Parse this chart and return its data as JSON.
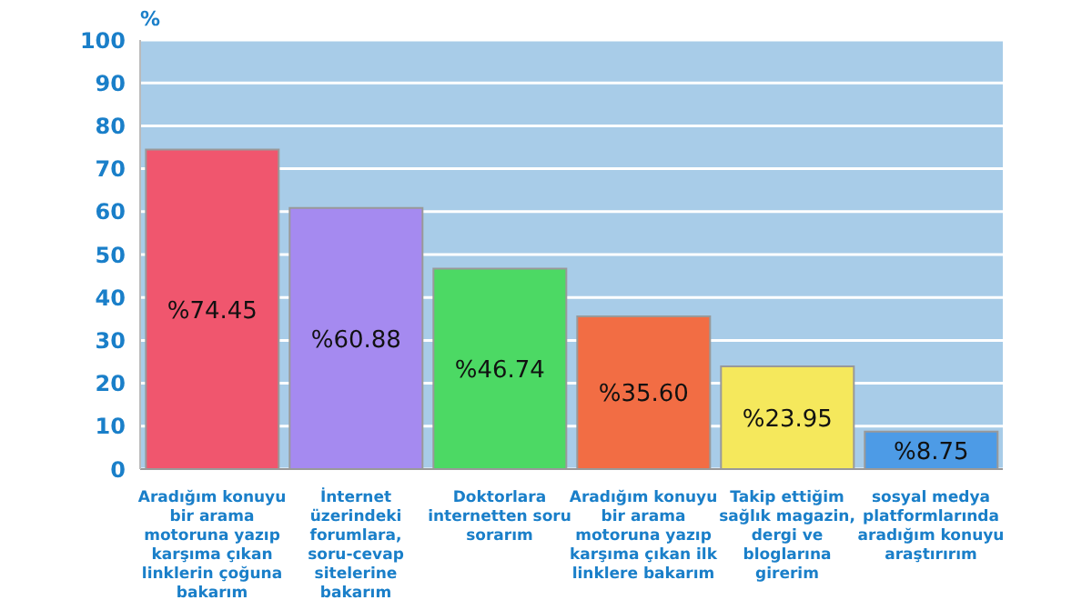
{
  "chart_data": {
    "type": "bar",
    "ylabel": "%",
    "categories": [
      "Aradığım konuyu bir arama motoruna yazıp karşıma çıkan linklerin çoğuna bakarım",
      "İnternet üzerindeki forumlara, soru-cevap sitelerine bakarım",
      "Doktorlara internetten soru sorarım",
      "Aradığım konuyu bir arama motoruna yazıp karşıma çıkan ilk linklere bakarım",
      "Takip ettiğim sağlık magazin, dergi ve bloglarına girerim",
      "sosyal medya platformlarında aradığım konuyu araştırırım"
    ],
    "values": [
      74.45,
      60.88,
      46.74,
      35.6,
      23.95,
      8.75
    ],
    "value_labels": [
      "%74.45",
      "%60.88",
      "%46.74",
      "%35.60",
      "%23.95",
      "%8.75"
    ],
    "colors": [
      "#f0566e",
      "#a58af0",
      "#4cd964",
      "#f26d44",
      "#f5e85c",
      "#4d9be6"
    ],
    "ylim": [
      0,
      100
    ],
    "yticks": [
      0,
      10,
      20,
      30,
      40,
      50,
      60,
      70,
      80,
      90,
      100
    ],
    "grid": "y"
  }
}
